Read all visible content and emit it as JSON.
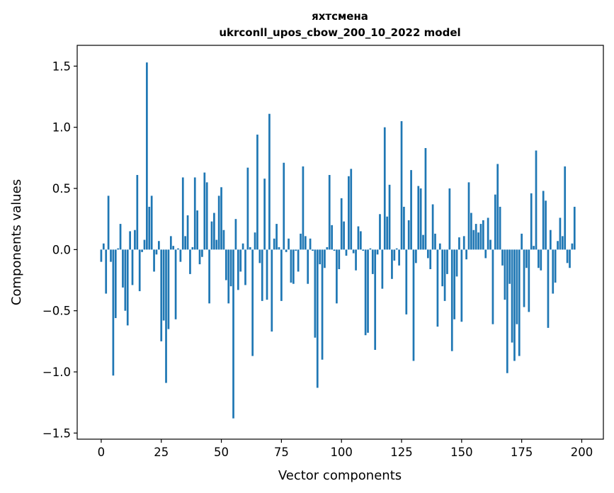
{
  "chart_data": {
    "type": "bar",
    "title_line1": "яхтсмена",
    "title_line2": "ukrconll_upos_cbow_200_10_2022 model",
    "xlabel": "Vector components",
    "ylabel": "Components values",
    "xlim": [
      -10,
      209
    ],
    "ylim": [
      -1.55,
      1.67
    ],
    "xticks": [
      0,
      25,
      50,
      75,
      100,
      125,
      150,
      175,
      200
    ],
    "xtick_labels": [
      "0",
      "25",
      "50",
      "75",
      "100",
      "125",
      "150",
      "175",
      "200"
    ],
    "yticks": [
      -1.5,
      -1.0,
      -0.5,
      0.0,
      0.5,
      1.0,
      1.5
    ],
    "ytick_labels": [
      "−1.5",
      "−1.0",
      "−0.5",
      "0.0",
      "0.5",
      "1.0",
      "1.5"
    ],
    "bar_color": "#1f77b4",
    "grid": false,
    "legend": false,
    "values": [
      -0.1,
      0.05,
      -0.36,
      0.44,
      -0.1,
      -1.03,
      -0.56,
      0.01,
      0.21,
      -0.31,
      -0.5,
      -0.62,
      0.15,
      -0.29,
      0.16,
      0.61,
      -0.34,
      -0.02,
      0.08,
      1.53,
      0.35,
      0.44,
      -0.18,
      -0.04,
      0.07,
      -0.75,
      -0.58,
      -1.09,
      -0.65,
      0.11,
      0.03,
      -0.57,
      0.01,
      -0.1,
      0.59,
      0.11,
      0.28,
      -0.2,
      0.02,
      0.59,
      0.32,
      -0.12,
      -0.06,
      0.63,
      0.55,
      -0.44,
      0.23,
      0.3,
      0.08,
      0.44,
      0.51,
      0.16,
      -0.25,
      -0.44,
      -0.3,
      -1.38,
      0.25,
      -0.33,
      -0.18,
      0.05,
      -0.29,
      0.67,
      0.02,
      -0.87,
      0.14,
      0.94,
      -0.11,
      -0.42,
      0.58,
      -0.41,
      1.11,
      -0.67,
      0.09,
      0.21,
      0.02,
      -0.42,
      0.71,
      -0.02,
      0.09,
      -0.27,
      -0.28,
      -0.01,
      -0.18,
      0.13,
      0.68,
      0.11,
      -0.28,
      0.09,
      -0.01,
      -0.72,
      -1.13,
      -0.12,
      -0.9,
      -0.15,
      0.02,
      0.61,
      0.2,
      -0.01,
      -0.44,
      -0.16,
      0.42,
      0.23,
      -0.05,
      0.6,
      0.66,
      -0.03,
      -0.17,
      0.19,
      0.15,
      -0.01,
      -0.7,
      -0.68,
      0.01,
      -0.2,
      -0.82,
      -0.04,
      0.29,
      -0.32,
      1.0,
      0.27,
      0.53,
      -0.24,
      -0.09,
      0.01,
      -0.13,
      1.05,
      0.35,
      -0.53,
      0.24,
      0.65,
      -0.91,
      -0.11,
      0.52,
      0.5,
      0.12,
      0.83,
      -0.07,
      -0.16,
      0.37,
      0.13,
      -0.63,
      0.05,
      -0.3,
      -0.42,
      -0.2,
      0.5,
      -0.83,
      -0.57,
      -0.22,
      0.1,
      -0.59,
      0.11,
      -0.08,
      0.55,
      0.3,
      0.16,
      0.21,
      0.14,
      0.21,
      0.24,
      -0.07,
      0.26,
      0.08,
      -0.61,
      0.45,
      0.7,
      0.35,
      -0.13,
      -0.41,
      -1.01,
      -0.28,
      -0.76,
      -0.91,
      -0.61,
      -0.87,
      0.13,
      -0.47,
      -0.15,
      -0.51,
      0.46,
      0.03,
      0.81,
      -0.15,
      -0.17,
      0.48,
      0.4,
      -0.64,
      0.16,
      -0.36,
      -0.27,
      0.07,
      0.26,
      0.11,
      0.68,
      -0.11,
      -0.15,
      0.05,
      0.35
    ]
  }
}
